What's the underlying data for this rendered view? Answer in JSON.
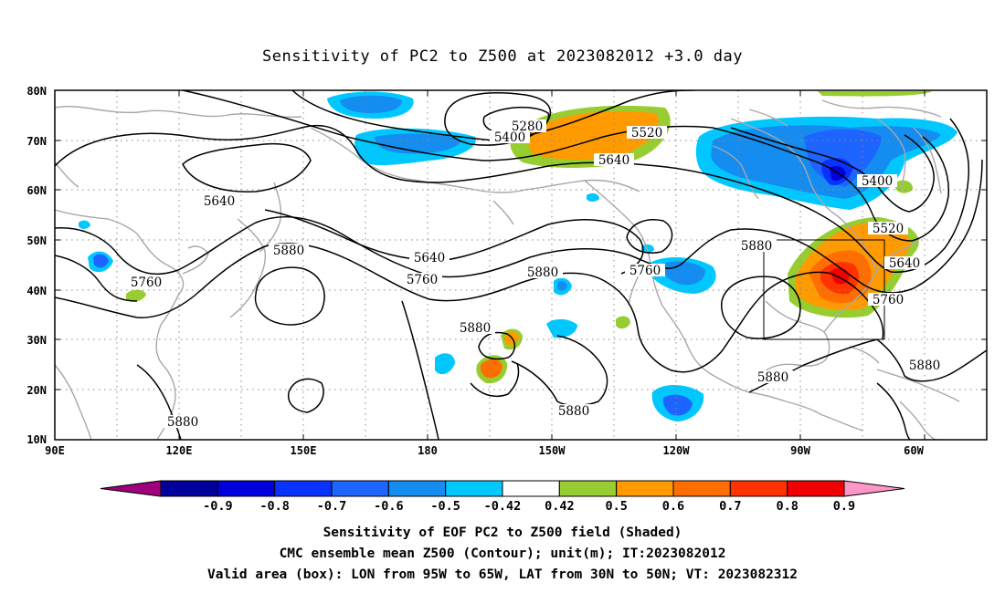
{
  "title": "Sensitivity of PC2 to Z500 at 2023082012 +3.0 day",
  "axes": {
    "lat_ticks": [
      "80N",
      "70N",
      "60N",
      "50N",
      "40N",
      "30N",
      "20N",
      "10N"
    ],
    "lon_ticks": [
      "90E",
      "120E",
      "150E",
      "180",
      "150W",
      "120W",
      "90W",
      "60W"
    ],
    "lon_range": [
      "90E",
      "45W"
    ],
    "lat_range": [
      "10N",
      "80N"
    ],
    "grid": true
  },
  "contour_labels": {
    "c5280": "5280",
    "c5400_a": "5400",
    "c5400_b": "5400",
    "c5520_a": "5520",
    "c5520_b": "5520",
    "c5640_a": "5640",
    "c5640_b": "5640",
    "c5640_c": "5640",
    "c5640_d": "5640",
    "c5760_a": "5760",
    "c5760_b": "5760",
    "c5760_c": "5760",
    "c5760_d": "5760",
    "c5880_a": "5880",
    "c5880_b": "5880",
    "c5880_c": "5880",
    "c5880_d": "5880",
    "c5880_e": "5880",
    "c5880_f": "5880",
    "c5880_g": "5880",
    "c5880_h": "5880"
  },
  "valid_box": {
    "lon_from": "95W",
    "lon_to": "65W",
    "lat_from": "30N",
    "lat_to": "50N"
  },
  "colorbar": {
    "labels": [
      "-0.9",
      "-0.8",
      "-0.7",
      "-0.6",
      "-0.5",
      "-0.42",
      "0.42",
      "0.5",
      "0.6",
      "0.7",
      "0.8",
      "0.9"
    ],
    "colors": [
      "#a0007c",
      "#00009a",
      "#0000dc",
      "#0a32ff",
      "#1e64ff",
      "#148cf0",
      "#00c8ff",
      "#ffffff",
      "#98cd32",
      "#ff9b00",
      "#ff6e00",
      "#ff3200",
      "#f00000",
      "#ff96c8"
    ]
  },
  "captions": {
    "line1": "Sensitivity of EOF PC2 to Z500 field (Shaded)",
    "line2": "CMC ensemble mean Z500 (Contour); unit(m); IT:2023082012",
    "line3": "Valid area (box): LON from 95W to 65W, LAT from 30N to 50N; VT: 2023082312"
  }
}
